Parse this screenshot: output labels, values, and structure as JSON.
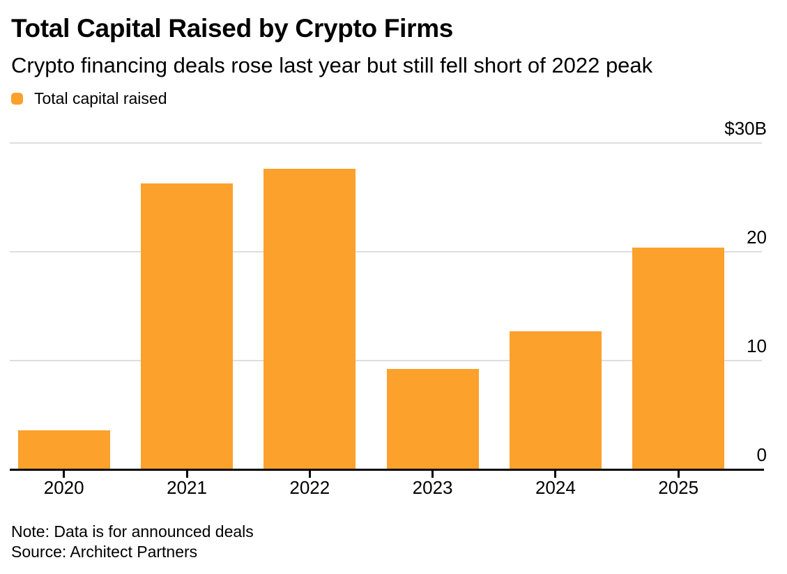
{
  "header": {
    "title": "Total Capital Raised by Crypto Firms",
    "subtitle": "Crypto financing deals rose last year but still fell short of 2022 peak"
  },
  "legend": {
    "label": "Total capital raised",
    "swatch_color": "#FCA12C"
  },
  "chart_data": {
    "type": "bar",
    "title": "Total Capital Raised by Crypto Firms",
    "subtitle": "Crypto financing deals rose last year but still fell short of 2022 peak",
    "categories": [
      "2020",
      "2021",
      "2022",
      "2023",
      "2024",
      "2025"
    ],
    "series": [
      {
        "name": "Total capital raised",
        "values": [
          3.6,
          26.3,
          27.6,
          9.2,
          12.7,
          20.4
        ]
      }
    ],
    "unit": "USD billions",
    "ylim": [
      0,
      30
    ],
    "yticks": [
      0,
      10,
      20,
      30
    ],
    "ytick_labels": [
      "0",
      "10",
      "20",
      "$30B"
    ],
    "y_axis_side": "right",
    "grid": "horizontal",
    "legend_position": "top-left",
    "bar_color": "#FCA12C",
    "gridline_color": "#DEDEDE",
    "axis_color": "#000000"
  },
  "footer": {
    "note": "Note: Data is for announced deals",
    "source": "Source: Architect Partners"
  },
  "colors": {
    "background": "#FFFFFF",
    "text": "#000000",
    "bar": "#FCA12C",
    "gridline": "#DEDEDE",
    "baseline": "#000000"
  }
}
